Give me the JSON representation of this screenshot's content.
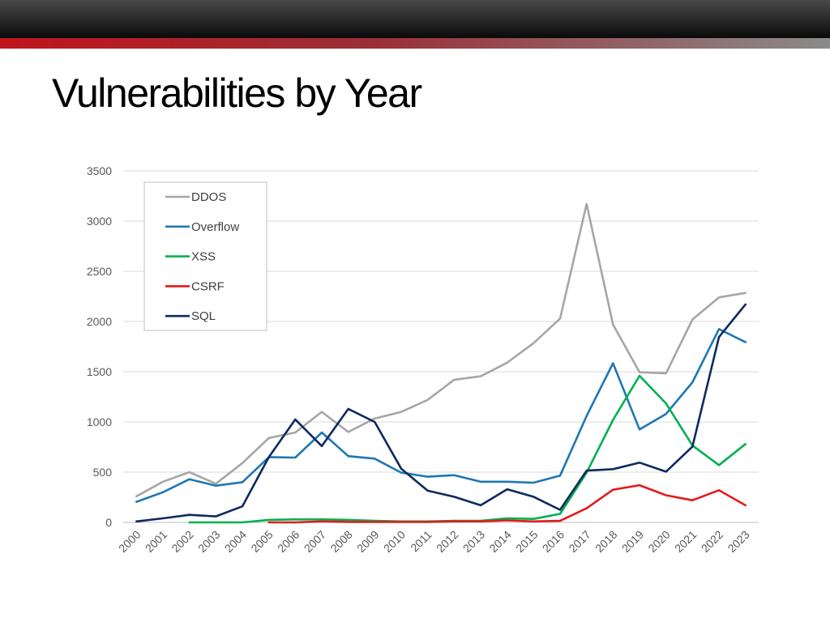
{
  "slide": {
    "title": "Vulnerabilities by Year"
  },
  "chart_data": {
    "type": "line",
    "title": "",
    "xlabel": "",
    "ylabel": "",
    "ylim": [
      0,
      3500
    ],
    "yticks": [
      0,
      500,
      1000,
      1500,
      2000,
      2500,
      3000,
      3500
    ],
    "grid": true,
    "legend_position": "top-left",
    "x": [
      "2000",
      "2001",
      "2002",
      "2003",
      "2004",
      "2005",
      "2006",
      "2007",
      "2008",
      "2009",
      "2010",
      "2011",
      "2012",
      "2013",
      "2014",
      "2015",
      "2016",
      "2017",
      "2018",
      "2019",
      "2020",
      "2021",
      "2022",
      "2023"
    ],
    "series": [
      {
        "name": "DDOS",
        "color": "#a6a6a6",
        "values": [
          260,
          405,
          500,
          385,
          590,
          840,
          895,
          1100,
          900,
          1035,
          1100,
          1220,
          1420,
          1455,
          1590,
          1785,
          2030,
          3170,
          1970,
          1495,
          1485,
          2020,
          2240,
          2285
        ]
      },
      {
        "name": "Overflow",
        "color": "#1f77b4",
        "values": [
          205,
          300,
          430,
          365,
          400,
          650,
          645,
          895,
          660,
          635,
          495,
          455,
          470,
          405,
          405,
          395,
          465,
          1060,
          1585,
          925,
          1080,
          1395,
          1925,
          1795
        ]
      },
      {
        "name": "XSS",
        "color": "#00b050",
        "values": [
          null,
          null,
          0,
          0,
          0,
          25,
          30,
          30,
          25,
          15,
          10,
          10,
          15,
          15,
          40,
          35,
          85,
          495,
          1020,
          1460,
          1185,
          765,
          570,
          780
        ]
      },
      {
        "name": "CSRF",
        "color": "#e41a1c",
        "values": [
          null,
          null,
          null,
          null,
          null,
          0,
          0,
          10,
          5,
          5,
          5,
          5,
          10,
          10,
          20,
          10,
          15,
          140,
          325,
          370,
          270,
          220,
          320,
          170
        ]
      },
      {
        "name": "SQL",
        "color": "#0d2a5e",
        "values": [
          10,
          40,
          75,
          60,
          160,
          650,
          1025,
          760,
          1130,
          1000,
          535,
          315,
          255,
          170,
          330,
          255,
          125,
          515,
          530,
          595,
          505,
          755,
          1845,
          2170
        ]
      }
    ]
  }
}
